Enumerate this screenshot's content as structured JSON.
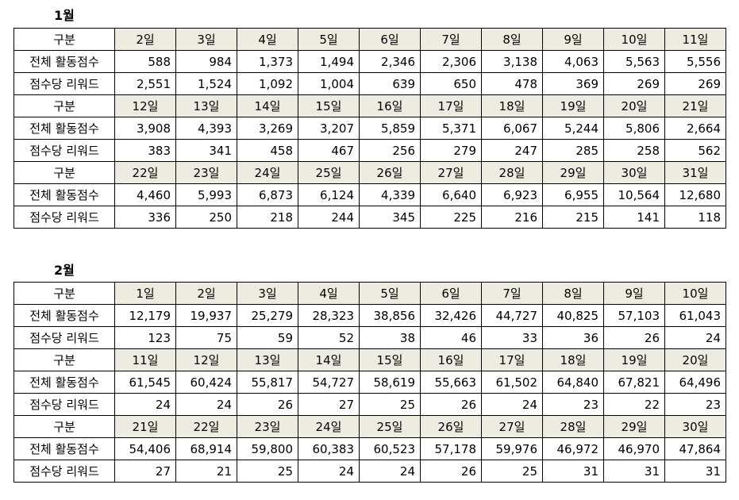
{
  "months": [
    {
      "title": "1월",
      "header_label": "구분",
      "row1_label": "전체 활동점수",
      "row2_label": "점수당 리워드",
      "blocks": [
        {
          "days": [
            "2일",
            "3일",
            "4일",
            "5일",
            "6일",
            "7일",
            "8일",
            "9일",
            "10일",
            "11일"
          ],
          "scores": [
            "588",
            "984",
            "1,373",
            "1,494",
            "2,346",
            "2,306",
            "3,138",
            "4,063",
            "5,563",
            "5,556"
          ],
          "rewards": [
            "2,551",
            "1,524",
            "1,092",
            "1,004",
            "639",
            "650",
            "478",
            "369",
            "269",
            "269"
          ]
        },
        {
          "days": [
            "12일",
            "13일",
            "14일",
            "15일",
            "16일",
            "17일",
            "18일",
            "19일",
            "20일",
            "21일"
          ],
          "scores": [
            "3,908",
            "4,393",
            "3,269",
            "3,207",
            "5,859",
            "5,371",
            "6,067",
            "5,244",
            "5,806",
            "2,664"
          ],
          "rewards": [
            "383",
            "341",
            "458",
            "467",
            "256",
            "279",
            "247",
            "285",
            "258",
            "562"
          ]
        },
        {
          "days": [
            "22일",
            "23일",
            "24일",
            "25일",
            "26일",
            "27일",
            "28일",
            "29일",
            "30일",
            "31일"
          ],
          "scores": [
            "4,460",
            "5,993",
            "6,873",
            "6,124",
            "4,339",
            "6,640",
            "6,923",
            "6,955",
            "10,564",
            "12,680"
          ],
          "rewards": [
            "336",
            "250",
            "218",
            "244",
            "345",
            "225",
            "216",
            "215",
            "141",
            "118"
          ]
        }
      ]
    },
    {
      "title": "2월",
      "header_label": "구분",
      "row1_label": "전체 활동점수",
      "row2_label": "점수당 리워드",
      "blocks": [
        {
          "days": [
            "1일",
            "2일",
            "3일",
            "4일",
            "5일",
            "6일",
            "7일",
            "8일",
            "9일",
            "10일"
          ],
          "scores": [
            "12,179",
            "19,937",
            "25,279",
            "28,323",
            "38,856",
            "32,426",
            "44,727",
            "40,825",
            "57,103",
            "61,043"
          ],
          "rewards": [
            "123",
            "75",
            "59",
            "52",
            "38",
            "46",
            "33",
            "36",
            "26",
            "24"
          ]
        },
        {
          "days": [
            "11일",
            "12일",
            "13일",
            "14일",
            "15일",
            "16일",
            "17일",
            "18일",
            "19일",
            "20일"
          ],
          "scores": [
            "61,545",
            "60,424",
            "55,817",
            "54,727",
            "58,619",
            "55,663",
            "61,502",
            "64,840",
            "67,821",
            "64,496"
          ],
          "rewards": [
            "24",
            "24",
            "26",
            "27",
            "25",
            "26",
            "24",
            "23",
            "22",
            "23"
          ]
        },
        {
          "days": [
            "21일",
            "22일",
            "23일",
            "24일",
            "25일",
            "26일",
            "27일",
            "28일",
            "29일",
            "30일"
          ],
          "scores": [
            "54,406",
            "68,914",
            "59,800",
            "60,383",
            "60,523",
            "57,178",
            "59,976",
            "46,972",
            "46,970",
            "47,864"
          ],
          "rewards": [
            "27",
            "21",
            "25",
            "24",
            "24",
            "26",
            "25",
            "31",
            "31",
            "31"
          ]
        }
      ]
    }
  ]
}
